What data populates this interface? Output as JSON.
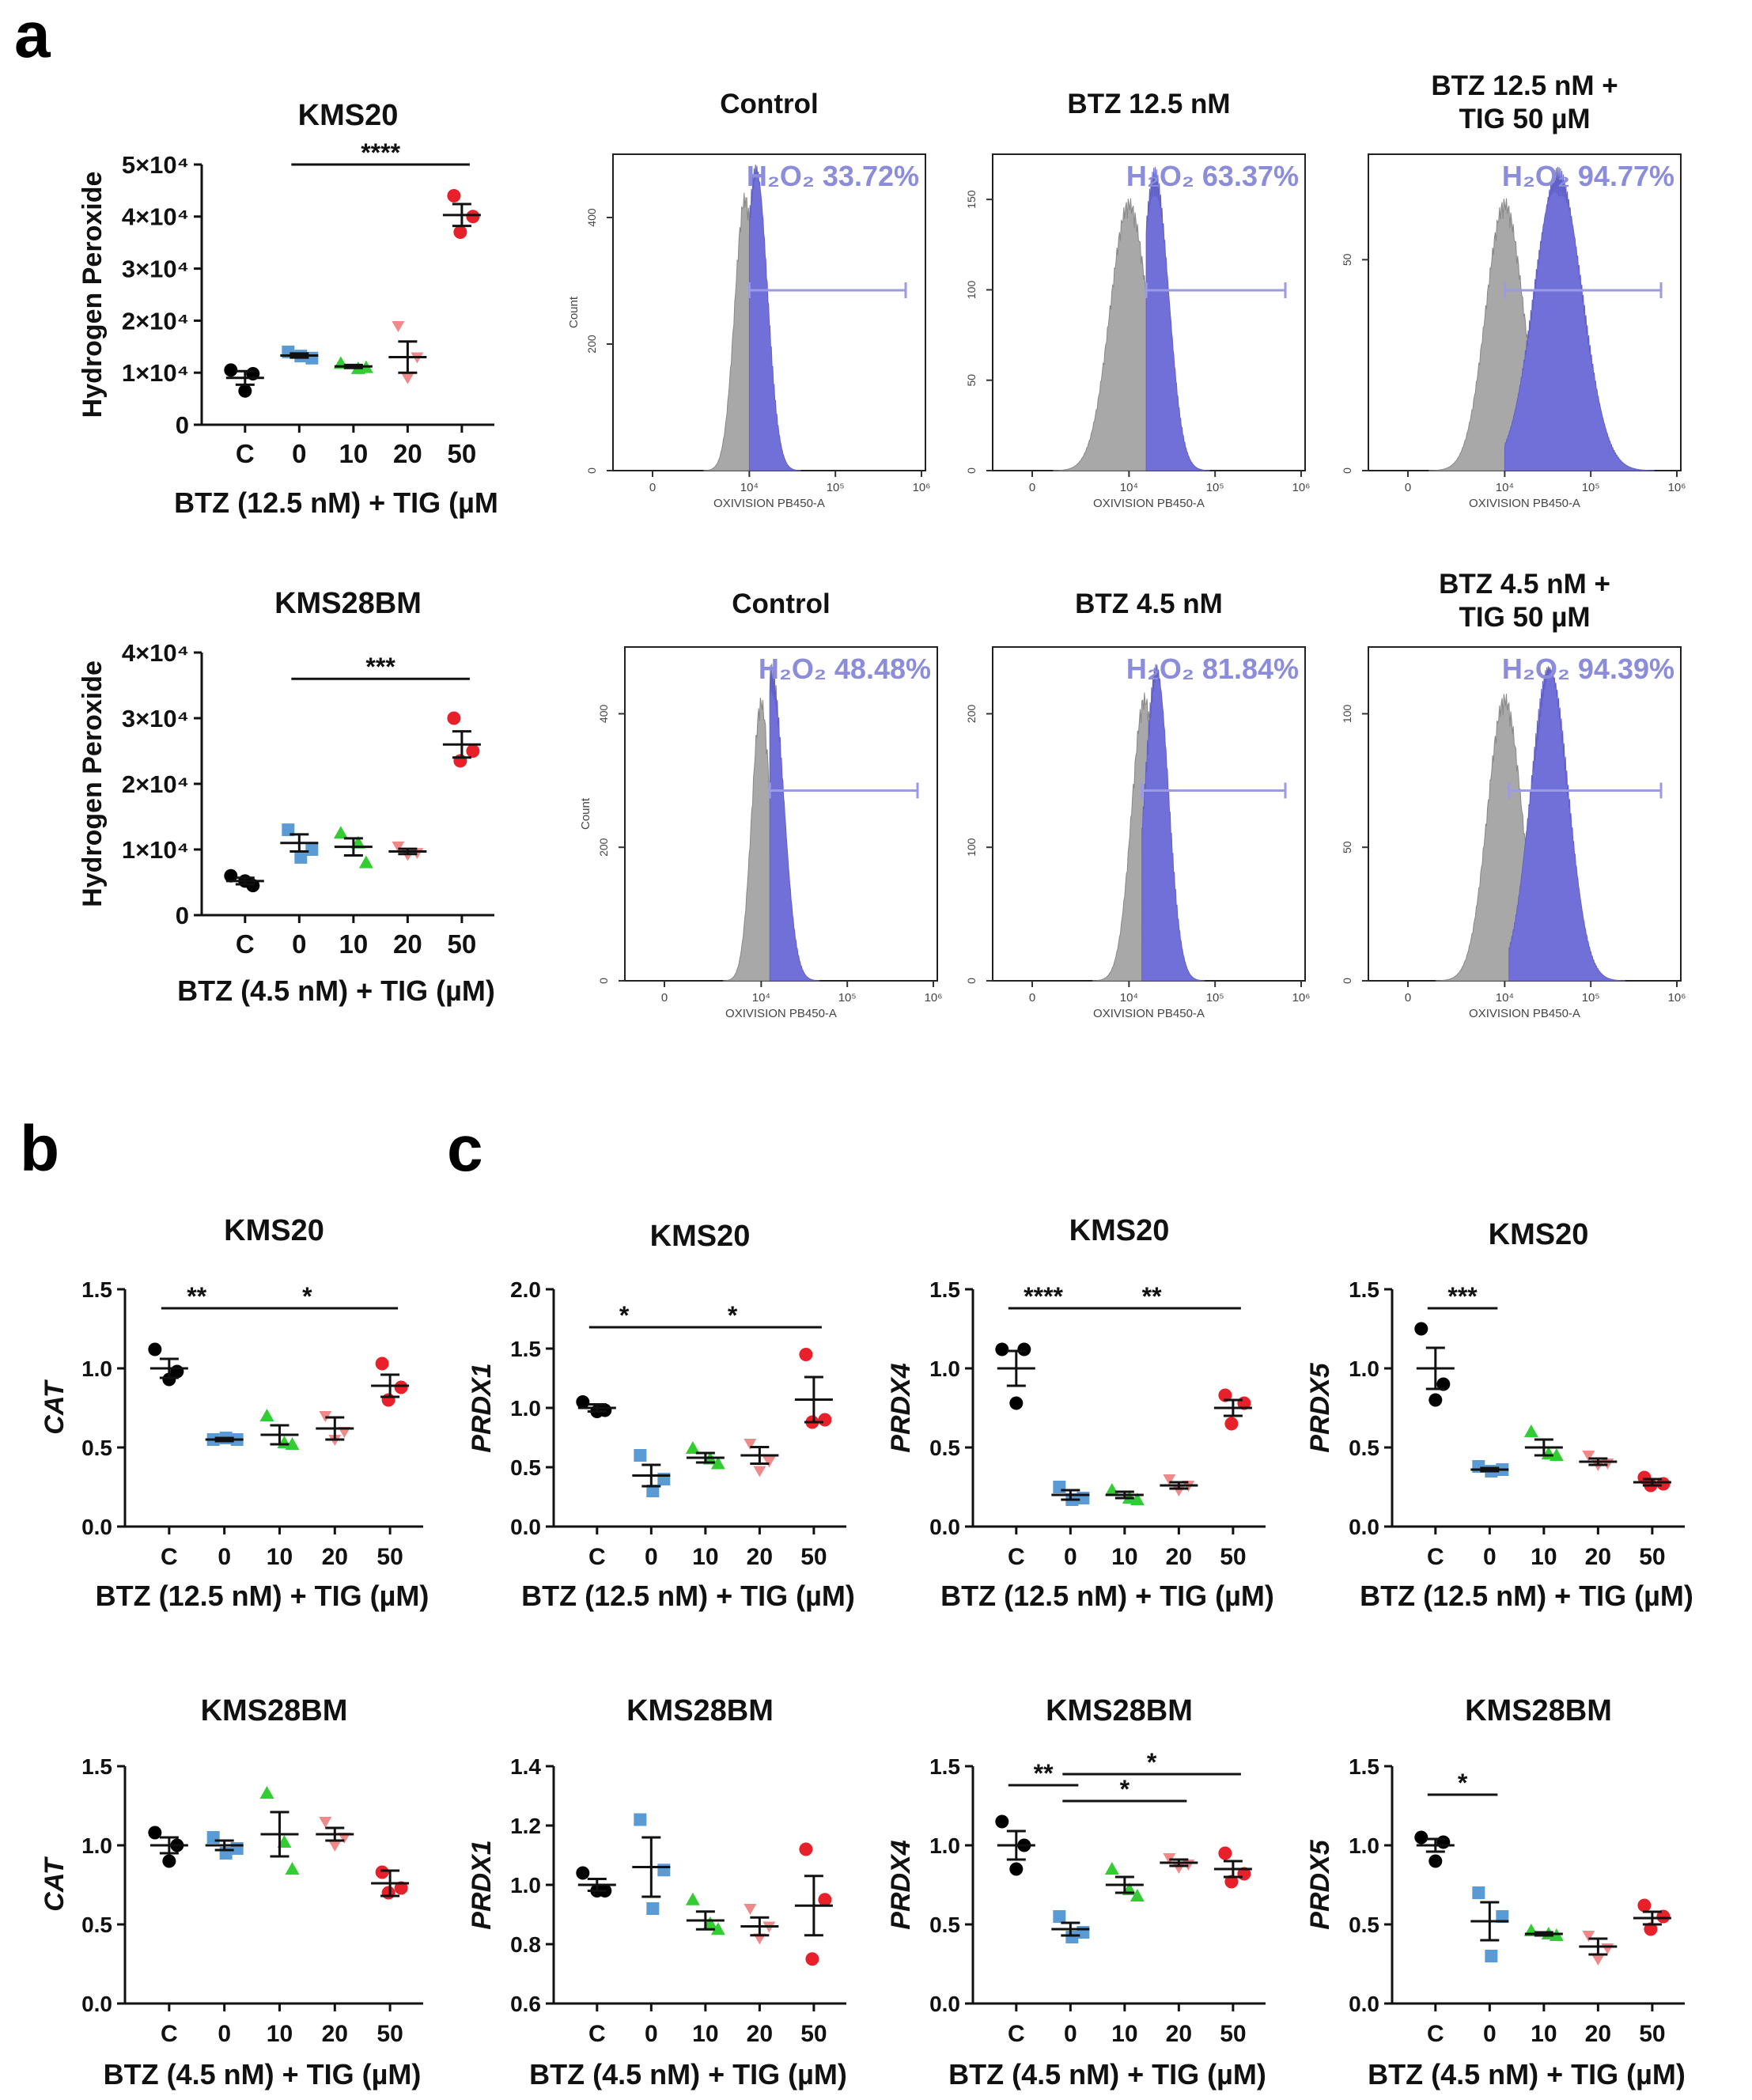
{
  "panel_letters": [
    "a",
    "b",
    "c"
  ],
  "chart_data": [
    {
      "id": "a1",
      "type": "scatter",
      "title": "KMS20",
      "ylabel": "Hydrogen Peroxide",
      "xlabel": "BTZ (12.5 nM) + TIG (µM",
      "categories": [
        "C",
        "0",
        "10",
        "20",
        "50"
      ],
      "ylim": [
        0,
        50000
      ],
      "yticks": [
        {
          "v": 0,
          "t": "0"
        },
        {
          "v": 10000,
          "t": "1×10⁴"
        },
        {
          "v": 20000,
          "t": "2×10⁴"
        },
        {
          "v": 30000,
          "t": "3×10⁴"
        },
        {
          "v": 40000,
          "t": "4×10⁴"
        },
        {
          "v": 50000,
          "t": "5×10⁴"
        }
      ],
      "points": [
        [
          10500,
          9800,
          6500
        ],
        [
          14000,
          12800,
          13200
        ],
        [
          11800,
          10800,
          11000
        ],
        [
          19000,
          13000,
          9000
        ],
        [
          44000,
          40000,
          37000
        ]
      ],
      "mean": [
        9000,
        13300,
        11200,
        13000,
        40300
      ],
      "sem": [
        1300,
        400,
        300,
        3000,
        2100
      ],
      "sig": [
        {
          "from": 1,
          "to": 4,
          "label": "****",
          "y": 50000
        }
      ]
    },
    {
      "id": "a2",
      "type": "scatter",
      "title": "KMS28BM",
      "ylabel": "Hydrogen Peroxide",
      "xlabel": "BTZ (4.5 nM) + TIG (µM)",
      "categories": [
        "C",
        "0",
        "10",
        "20",
        "50"
      ],
      "ylim": [
        0,
        40000
      ],
      "yticks": [
        {
          "v": 0,
          "t": "0"
        },
        {
          "v": 10000,
          "t": "1×10⁴"
        },
        {
          "v": 20000,
          "t": "2×10⁴"
        },
        {
          "v": 30000,
          "t": "3×10⁴"
        },
        {
          "v": 40000,
          "t": "4×10⁴"
        }
      ],
      "points": [
        [
          6000,
          4500,
          5200
        ],
        [
          13000,
          10000,
          8800
        ],
        [
          12500,
          11000,
          8000
        ],
        [
          10500,
          9500,
          9200
        ],
        [
          30000,
          25000,
          23500
        ]
      ],
      "mean": [
        5200,
        11000,
        10400,
        9700,
        26000
      ],
      "sem": [
        500,
        1300,
        1300,
        400,
        2000
      ],
      "sig": [
        {
          "from": 1,
          "to": 4,
          "label": "***",
          "y": 36000
        }
      ]
    },
    {
      "id": "h1",
      "type": "histogram",
      "title": "Control",
      "ylabel": "Count",
      "xlabel": "OXIVISION PB450-A",
      "gate_label": "H₂O₂ 33.72%",
      "yticks": [
        "0",
        "200",
        "400"
      ],
      "xticks": [
        "0",
        "10⁴",
        "10⁵",
        "10⁶"
      ]
    },
    {
      "id": "h2",
      "type": "histogram",
      "title": "BTZ 12.5 nM",
      "ylabel": "",
      "xlabel": "OXIVISION PB450-A",
      "gate_label": "H₂O₂ 63.37%",
      "yticks": [
        "0",
        "50",
        "100",
        "150"
      ],
      "xticks": [
        "0",
        "10⁴",
        "10⁵",
        "10⁶"
      ]
    },
    {
      "id": "h3",
      "type": "histogram",
      "title": "BTZ 12.5 nM +",
      "title2": "TIG 50 µM",
      "ylabel": "",
      "xlabel": "OXIVISION PB450-A",
      "gate_label": "H₂O₂ 94.77%",
      "yticks": [
        "0",
        "50"
      ],
      "xticks": [
        "0",
        "10⁴",
        "10⁵",
        "10⁶"
      ]
    },
    {
      "id": "h4",
      "type": "histogram",
      "title": "Control",
      "ylabel": "Count",
      "xlabel": "OXIVISION PB450-A",
      "gate_label": "H₂O₂ 48.48%",
      "yticks": [
        "0",
        "200",
        "400"
      ],
      "xticks": [
        "0",
        "10⁴",
        "10⁵",
        "10⁶"
      ]
    },
    {
      "id": "h5",
      "type": "histogram",
      "title": "BTZ 4.5 nM",
      "ylabel": "",
      "xlabel": "OXIVISION PB450-A",
      "gate_label": "H₂O₂ 81.84%",
      "yticks": [
        "0",
        "100",
        "200"
      ],
      "xticks": [
        "0",
        "10⁴",
        "10⁵",
        "10⁶"
      ]
    },
    {
      "id": "h6",
      "type": "histogram",
      "title": "BTZ 4.5 nM +",
      "title2": "TIG 50 µM",
      "ylabel": "",
      "xlabel": "OXIVISION PB450-A",
      "gate_label": "H₂O₂ 94.39%",
      "yticks": [
        "0",
        "50",
        "100"
      ],
      "xticks": [
        "0",
        "10⁴",
        "10⁵",
        "10⁶"
      ]
    },
    {
      "id": "b1",
      "type": "scatter",
      "title": "KMS20",
      "ylabel": "CAT",
      "xlabel": "BTZ (12.5 nM) + TIG (µM)",
      "categories": [
        "C",
        "0",
        "10",
        "20",
        "50"
      ],
      "ylim": [
        0,
        1.5
      ],
      "yticks": [
        {
          "v": 0,
          "t": "0.0"
        },
        {
          "v": 0.5,
          "t": "0.5"
        },
        {
          "v": 1.0,
          "t": "1.0"
        },
        {
          "v": 1.5,
          "t": "1.5"
        }
      ],
      "points": [
        [
          1.12,
          0.98,
          0.93
        ],
        [
          0.55,
          0.55,
          0.56
        ],
        [
          0.7,
          0.53,
          0.52
        ],
        [
          0.7,
          0.6,
          0.55
        ],
        [
          1.03,
          0.88,
          0.8
        ]
      ],
      "mean": [
        1.0,
        0.55,
        0.58,
        0.62,
        0.89
      ],
      "sem": [
        0.06,
        0.01,
        0.06,
        0.07,
        0.07
      ],
      "sig": [
        {
          "from": 0,
          "to": 1,
          "label": "**",
          "y": 1.38
        },
        {
          "from": 1,
          "to": 4,
          "label": "*",
          "y": 1.38
        }
      ]
    },
    {
      "id": "c1",
      "type": "scatter",
      "title": "KMS20",
      "ylabel": "PRDX1",
      "xlabel": "BTZ (12.5 nM) + TIG (µM)",
      "categories": [
        "C",
        "0",
        "10",
        "20",
        "50"
      ],
      "ylim": [
        0,
        2.0
      ],
      "yticks": [
        {
          "v": 0,
          "t": "0.0"
        },
        {
          "v": 0.5,
          "t": "0.5"
        },
        {
          "v": 1.0,
          "t": "1.0"
        },
        {
          "v": 1.5,
          "t": "1.5"
        },
        {
          "v": 2.0,
          "t": "2.0"
        }
      ],
      "points": [
        [
          1.05,
          0.98,
          0.97
        ],
        [
          0.6,
          0.4,
          0.3
        ],
        [
          0.66,
          0.57,
          0.53
        ],
        [
          0.7,
          0.55,
          0.47
        ],
        [
          1.45,
          0.9,
          0.88
        ]
      ],
      "mean": [
        1.0,
        0.43,
        0.58,
        0.6,
        1.07
      ],
      "sem": [
        0.03,
        0.09,
        0.04,
        0.07,
        0.19
      ],
      "sig": [
        {
          "from": 0,
          "to": 1,
          "label": "*",
          "y": 1.68
        },
        {
          "from": 1,
          "to": 4,
          "label": "*",
          "y": 1.68
        }
      ]
    },
    {
      "id": "c2",
      "type": "scatter",
      "title": "KMS20",
      "ylabel": "PRDX4",
      "xlabel": "BTZ (12.5 nM) + TIG (µM)",
      "categories": [
        "C",
        "0",
        "10",
        "20",
        "50"
      ],
      "ylim": [
        0,
        1.5
      ],
      "yticks": [
        {
          "v": 0,
          "t": "0.0"
        },
        {
          "v": 0.5,
          "t": "0.5"
        },
        {
          "v": 1.0,
          "t": "1.0"
        },
        {
          "v": 1.5,
          "t": "1.5"
        }
      ],
      "points": [
        [
          1.12,
          1.12,
          0.78
        ],
        [
          0.25,
          0.18,
          0.17
        ],
        [
          0.23,
          0.18,
          0.17
        ],
        [
          0.3,
          0.26,
          0.23
        ],
        [
          0.83,
          0.78,
          0.65
        ]
      ],
      "mean": [
        1.0,
        0.2,
        0.2,
        0.26,
        0.75
      ],
      "sem": [
        0.11,
        0.03,
        0.02,
        0.02,
        0.05
      ],
      "sig": [
        {
          "from": 0,
          "to": 1,
          "label": "****",
          "y": 1.38
        },
        {
          "from": 1,
          "to": 4,
          "label": "**",
          "y": 1.38
        }
      ]
    },
    {
      "id": "c3",
      "type": "scatter",
      "title": "KMS20",
      "ylabel": "PRDX5",
      "xlabel": "BTZ (12.5 nM) + TIG (µM)",
      "categories": [
        "C",
        "0",
        "10",
        "20",
        "50"
      ],
      "ylim": [
        0,
        1.5
      ],
      "yticks": [
        {
          "v": 0,
          "t": "0.0"
        },
        {
          "v": 0.5,
          "t": "0.5"
        },
        {
          "v": 1.0,
          "t": "1.0"
        },
        {
          "v": 1.5,
          "t": "1.5"
        }
      ],
      "points": [
        [
          1.25,
          0.9,
          0.8
        ],
        [
          0.38,
          0.36,
          0.35
        ],
        [
          0.6,
          0.46,
          0.45
        ],
        [
          0.45,
          0.4,
          0.39
        ],
        [
          0.31,
          0.27,
          0.26
        ]
      ],
      "mean": [
        1.0,
        0.36,
        0.5,
        0.41,
        0.28
      ],
      "sem": [
        0.13,
        0.01,
        0.05,
        0.02,
        0.02
      ],
      "sig": [
        {
          "from": 0,
          "to": 1,
          "label": "***",
          "y": 1.38
        }
      ]
    },
    {
      "id": "b2",
      "type": "scatter",
      "title": "KMS28BM",
      "ylabel": "CAT",
      "xlabel": "BTZ (4.5 nM) + TIG (µM)",
      "categories": [
        "C",
        "0",
        "10",
        "20",
        "50"
      ],
      "ylim": [
        0,
        1.5
      ],
      "yticks": [
        {
          "v": 0,
          "t": "0.0"
        },
        {
          "v": 0.5,
          "t": "0.5"
        },
        {
          "v": 1.0,
          "t": "1.0"
        },
        {
          "v": 1.5,
          "t": "1.5"
        }
      ],
      "points": [
        [
          1.08,
          1.0,
          0.9
        ],
        [
          1.05,
          0.98,
          0.95
        ],
        [
          1.33,
          1.02,
          0.85
        ],
        [
          1.15,
          1.05,
          1.0
        ],
        [
          0.83,
          0.73,
          0.7
        ]
      ],
      "mean": [
        1.0,
        1.0,
        1.07,
        1.07,
        0.76
      ],
      "sem": [
        0.05,
        0.03,
        0.14,
        0.04,
        0.08
      ],
      "sig": []
    },
    {
      "id": "c4",
      "type": "scatter",
      "title": "KMS28BM",
      "ylabel": "PRDX1",
      "xlabel": "BTZ (4.5 nM) + TIG (µM)",
      "categories": [
        "C",
        "0",
        "10",
        "20",
        "50"
      ],
      "ylim": [
        0.6,
        1.4
      ],
      "yticks": [
        {
          "v": 0.6,
          "t": "0.6"
        },
        {
          "v": 0.8,
          "t": "0.8"
        },
        {
          "v": 1.0,
          "t": "1.0"
        },
        {
          "v": 1.2,
          "t": "1.2"
        },
        {
          "v": 1.4,
          "t": "1.4"
        }
      ],
      "points": [
        [
          1.04,
          0.98,
          0.98
        ],
        [
          1.22,
          1.05,
          0.92
        ],
        [
          0.95,
          0.87,
          0.85
        ],
        [
          0.92,
          0.86,
          0.82
        ],
        [
          1.12,
          0.95,
          0.75
        ]
      ],
      "mean": [
        1.0,
        1.06,
        0.88,
        0.86,
        0.93
      ],
      "sem": [
        0.02,
        0.1,
        0.03,
        0.03,
        0.1
      ],
      "sig": []
    },
    {
      "id": "c5",
      "type": "scatter",
      "title": "KMS28BM",
      "ylabel": "PRDX4",
      "xlabel": "BTZ (4.5 nM) + TIG (µM)",
      "categories": [
        "C",
        "0",
        "10",
        "20",
        "50"
      ],
      "ylim": [
        0,
        1.5
      ],
      "yticks": [
        {
          "v": 0,
          "t": "0.0"
        },
        {
          "v": 0.5,
          "t": "0.5"
        },
        {
          "v": 1.0,
          "t": "1.0"
        },
        {
          "v": 1.5,
          "t": "1.5"
        }
      ],
      "points": [
        [
          1.15,
          1.0,
          0.85
        ],
        [
          0.55,
          0.45,
          0.42
        ],
        [
          0.85,
          0.72,
          0.68
        ],
        [
          0.92,
          0.88,
          0.86
        ],
        [
          0.95,
          0.82,
          0.77
        ]
      ],
      "mean": [
        1.0,
        0.47,
        0.75,
        0.89,
        0.85
      ],
      "sem": [
        0.09,
        0.04,
        0.05,
        0.02,
        0.05
      ],
      "sig": [
        {
          "from": 0,
          "to": 1,
          "label": "**",
          "y": 1.38
        },
        {
          "from": 1,
          "to": 3,
          "label": "*",
          "y": 1.28
        },
        {
          "from": 1,
          "to": 4,
          "label": "*",
          "y": 1.45
        }
      ]
    },
    {
      "id": "c6",
      "type": "scatter",
      "title": "KMS28BM",
      "ylabel": "PRDX5",
      "xlabel": "BTZ (4.5 nM) + TIG (µM)",
      "categories": [
        "C",
        "0",
        "10",
        "20",
        "50"
      ],
      "ylim": [
        0,
        1.5
      ],
      "yticks": [
        {
          "v": 0,
          "t": "0.0"
        },
        {
          "v": 0.5,
          "t": "0.5"
        },
        {
          "v": 1.0,
          "t": "1.0"
        },
        {
          "v": 1.5,
          "t": "1.5"
        }
      ],
      "points": [
        [
          1.05,
          1.02,
          0.9
        ],
        [
          0.7,
          0.55,
          0.3
        ],
        [
          0.46,
          0.44,
          0.43
        ],
        [
          0.43,
          0.35,
          0.28
        ],
        [
          0.62,
          0.55,
          0.47
        ]
      ],
      "mean": [
        1.0,
        0.52,
        0.44,
        0.36,
        0.54
      ],
      "sem": [
        0.04,
        0.12,
        0.01,
        0.05,
        0.04
      ],
      "sig": [
        {
          "from": 0,
          "to": 1,
          "label": "*",
          "y": 1.32
        }
      ]
    }
  ],
  "colors": {
    "C": "#000000",
    "0": "#5b9bd5",
    "10": "#33cc33",
    "20": "#f08a8a",
    "50": "#e8202a",
    "histogram_fill": "#7070d8",
    "histogram_control": "#a8a8a8",
    "gate_text": "#8c8cdc"
  }
}
